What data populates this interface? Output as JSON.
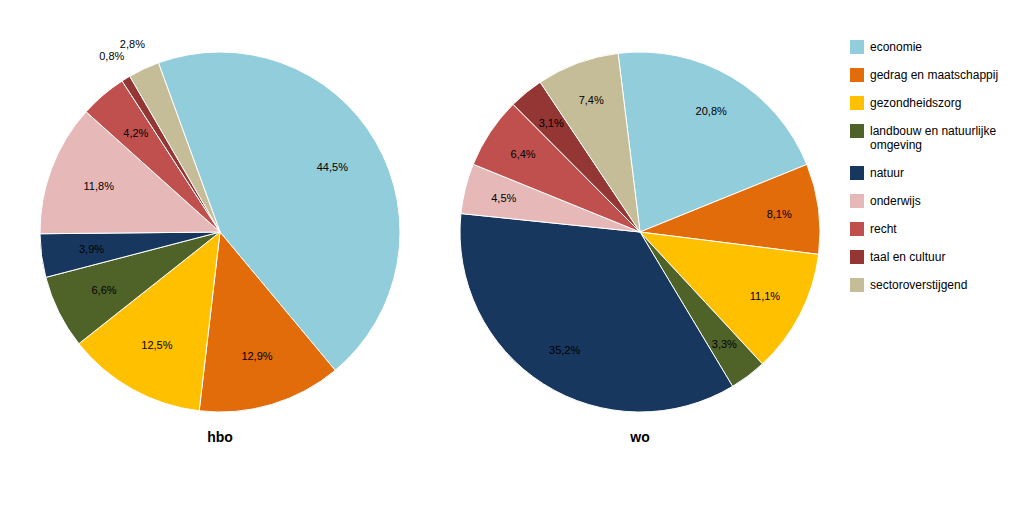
{
  "chart_data": [
    {
      "type": "pie",
      "title": "hbo",
      "categories": [
        "economie",
        "gedrag en maatschappij",
        "gezondheidszorg",
        "landbouw en natuurlijke\nomgeving",
        "natuur",
        "onderwijs",
        "recht",
        "taal en cultuur",
        "sectoroverstijgend"
      ],
      "values": [
        44.5,
        12.9,
        12.5,
        6.6,
        3.9,
        11.8,
        4.2,
        0.8,
        2.8
      ],
      "value_labels": [
        "44,5%",
        "12,9%",
        "12,5%",
        "6,6%",
        "3,9%",
        "11,8%",
        "4,2%",
        "0,8%",
        "2,8%"
      ],
      "colors": [
        "#92CDDC",
        "#E26B0A",
        "#FFC000",
        "#4F6228",
        "#17375E",
        "#E6B9B8",
        "#C0504D",
        "#943634",
        "#C4BD97"
      ],
      "data_labels": true,
      "legend": "right"
    },
    {
      "type": "pie",
      "title": "wo",
      "categories": [
        "economie",
        "gedrag en maatschappij",
        "gezondheidszorg",
        "landbouw en natuurlijke\nomgeving",
        "natuur",
        "onderwijs",
        "recht",
        "taal en cultuur",
        "sectoroverstijgend"
      ],
      "values": [
        20.8,
        8.1,
        11.1,
        3.3,
        35.2,
        4.5,
        6.4,
        3.1,
        7.4
      ],
      "value_labels": [
        "20,8%",
        "8,1%",
        "11,1%",
        "3,3%",
        "35,2%",
        "4,5%",
        "6,4%",
        "3,1%",
        "7,4%"
      ],
      "colors": [
        "#92CDDC",
        "#E26B0A",
        "#FFC000",
        "#4F6228",
        "#17375E",
        "#E6B9B8",
        "#C0504D",
        "#943634",
        "#C4BD97"
      ],
      "data_labels": true
    }
  ]
}
